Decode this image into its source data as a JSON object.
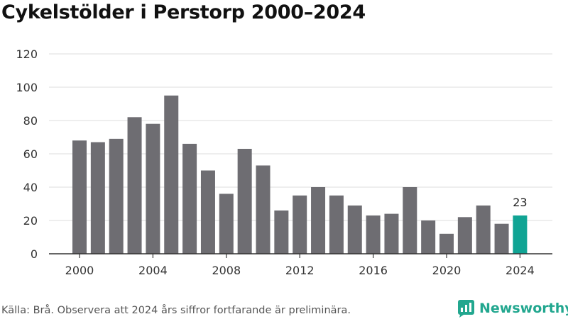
{
  "title": "Cykelstölder i Perstorp 2000–2024",
  "source": "Källa: Brå. Observera att 2024 års siffror fortfarande är preliminära.",
  "brand": "Newsworthy",
  "colors": {
    "bar": "#6e6d72",
    "highlight": "#10a494",
    "grid": "#dddddd",
    "axis": "#333333",
    "brand": "#22a78f"
  },
  "chart_data": {
    "type": "bar",
    "title": "Cykelstölder i Perstorp 2000–2024",
    "xlabel": "",
    "ylabel": "",
    "x": [
      2000,
      2001,
      2002,
      2003,
      2004,
      2005,
      2006,
      2007,
      2008,
      2009,
      2010,
      2011,
      2012,
      2013,
      2014,
      2015,
      2016,
      2017,
      2018,
      2019,
      2020,
      2021,
      2022,
      2023,
      2024
    ],
    "values": [
      68,
      67,
      69,
      82,
      78,
      95,
      66,
      50,
      36,
      63,
      53,
      26,
      35,
      40,
      35,
      29,
      23,
      24,
      40,
      20,
      12,
      22,
      29,
      18,
      23
    ],
    "ylim": [
      0,
      120
    ],
    "yticks": [
      0,
      20,
      40,
      60,
      80,
      100,
      120
    ],
    "xticks": [
      2000,
      2004,
      2008,
      2012,
      2016,
      2020,
      2024
    ],
    "highlight": {
      "x": 2024,
      "label": "23"
    },
    "grid": "horizontal",
    "legend": "none"
  }
}
